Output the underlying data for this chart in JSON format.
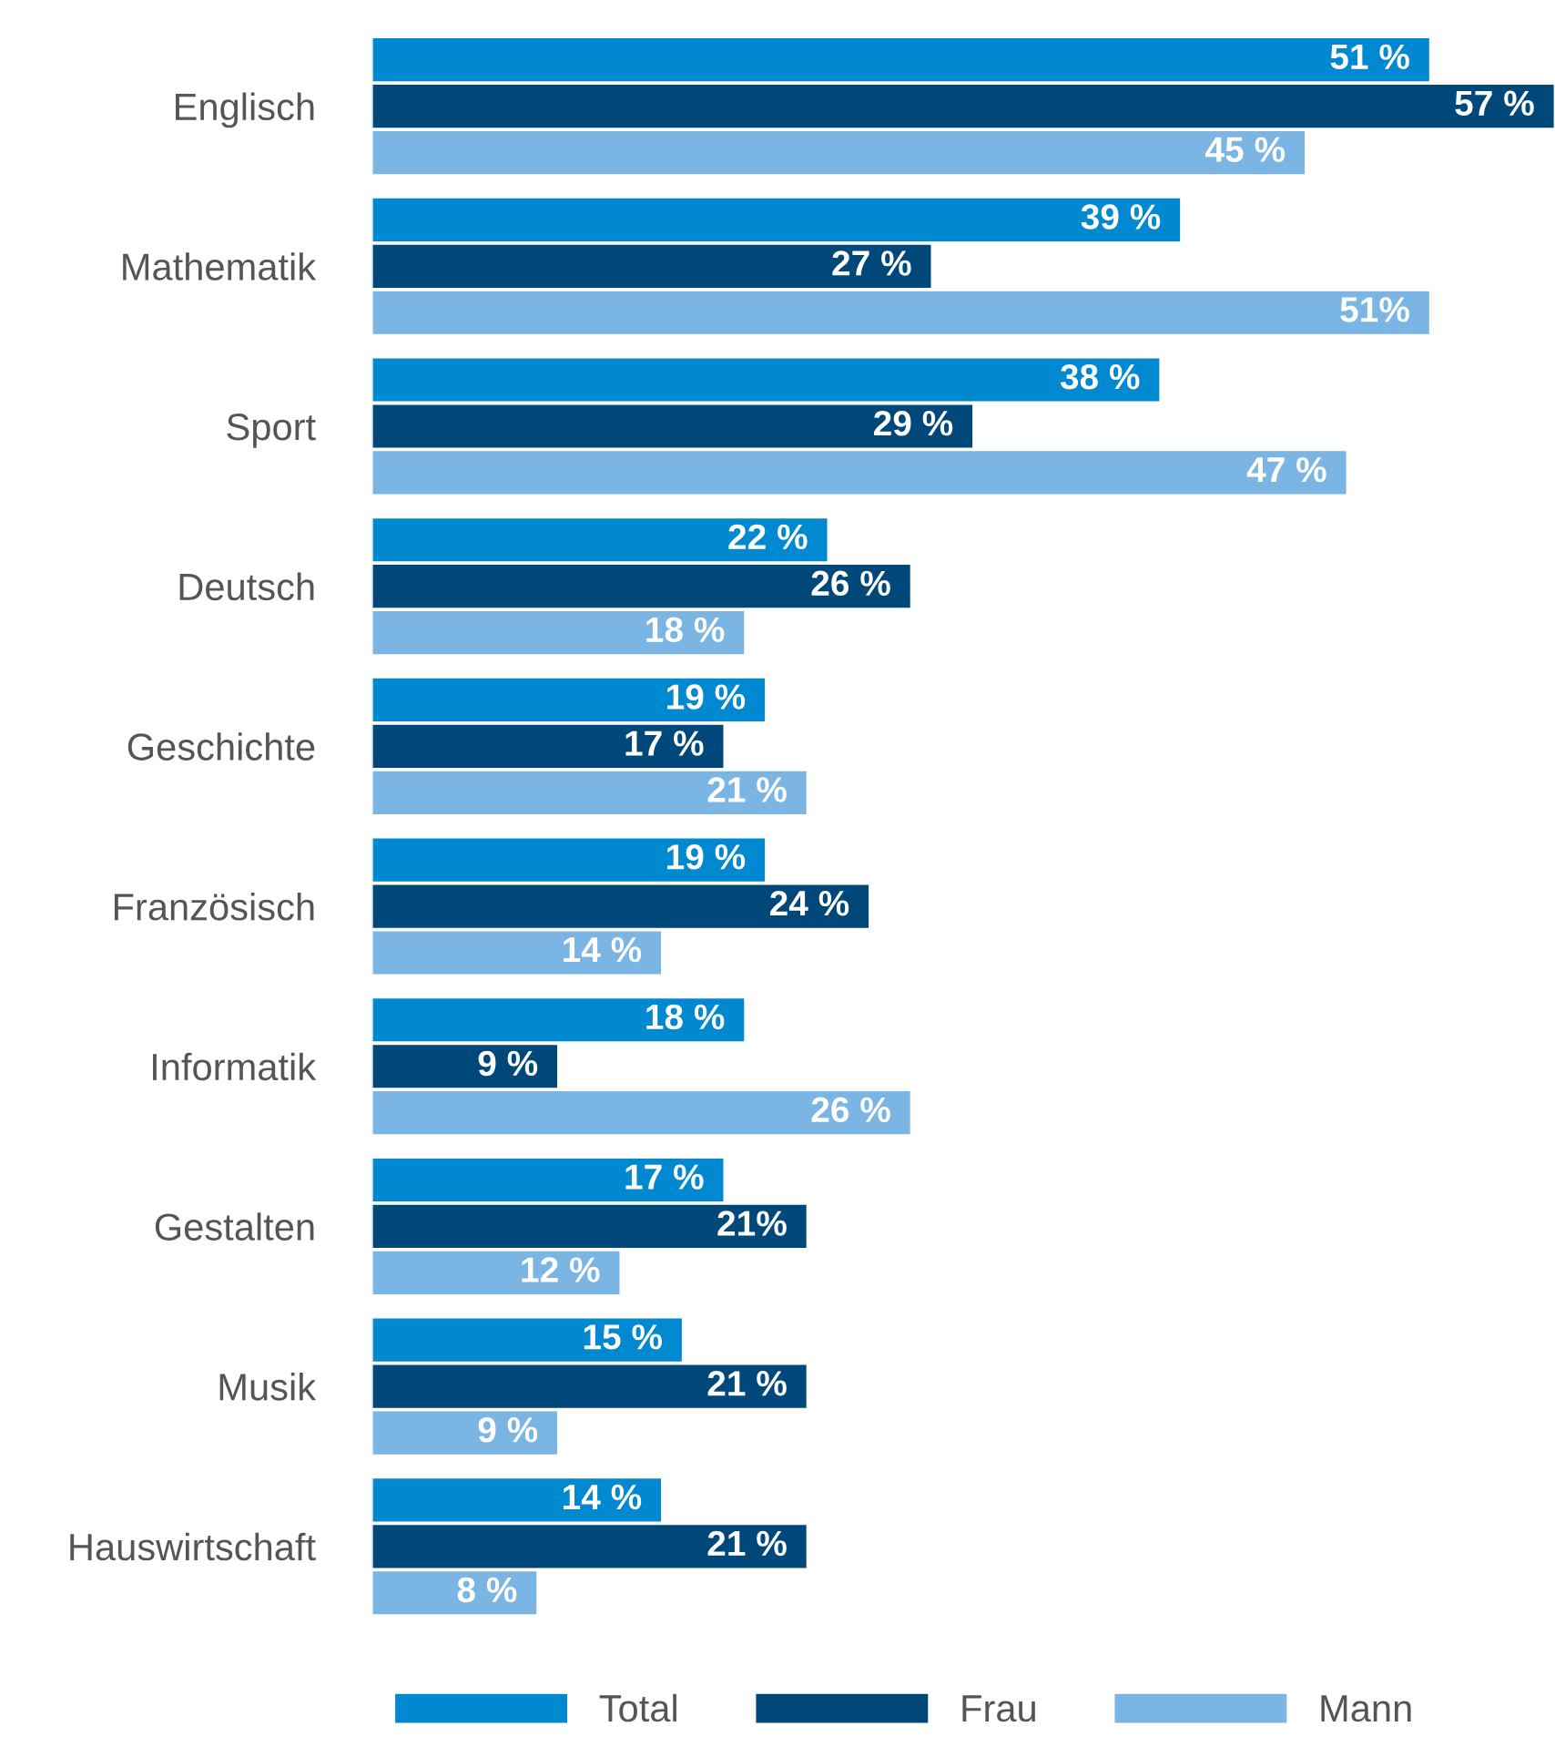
{
  "chart_data": {
    "type": "bar",
    "orientation": "horizontal",
    "categories": [
      "Englisch",
      "Mathematik",
      "Sport",
      "Deutsch",
      "Geschichte",
      "Französisch",
      "Informatik",
      "Gestalten",
      "Musik",
      "Hauswirtschaft"
    ],
    "series": [
      {
        "name": "Total",
        "color": "#0088d0",
        "values": [
          51,
          39,
          38,
          22,
          19,
          19,
          18,
          17,
          15,
          14
        ],
        "value_labels": [
          "51 %",
          "39 %",
          "38 %",
          "22 %",
          "19 %",
          "19 %",
          "18 %",
          "17 %",
          "15 %",
          "14 %"
        ]
      },
      {
        "name": "Frau",
        "color": "#00487a",
        "values": [
          57,
          27,
          29,
          26,
          17,
          24,
          9,
          21,
          21,
          21
        ],
        "value_labels": [
          "57 %",
          "27 %",
          "29 %",
          "26 %",
          "17 %",
          "24 %",
          "9 %",
          "21%",
          "21 %",
          "21 %"
        ]
      },
      {
        "name": "Mann",
        "color": "#7ab5e3",
        "values": [
          45,
          51,
          47,
          18,
          21,
          14,
          26,
          12,
          9,
          8
        ],
        "value_labels": [
          "45 %",
          "51%",
          "47 %",
          "18 %",
          "21 %",
          "14 %",
          "26 %",
          "12 %",
          "9 %",
          "8 %"
        ]
      }
    ],
    "xlim": [
      0,
      57
    ],
    "tick_labels": "y",
    "grid": false,
    "legend": "bottom"
  }
}
